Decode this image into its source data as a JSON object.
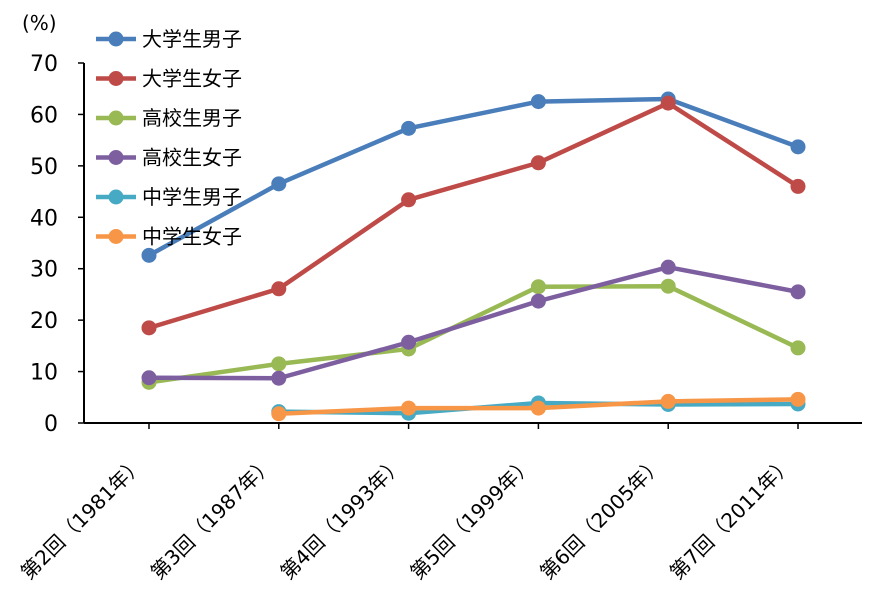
{
  "chart_data": {
    "type": "line",
    "unit_label": "(%)",
    "categories": [
      "第2回（1981年）",
      "第3回（1987年）",
      "第4回（1993年）",
      "第5回（1999年）",
      "第6回（2005年）",
      "第7回（2011年）"
    ],
    "ylim": [
      0,
      70
    ],
    "yticks": [
      0,
      10,
      20,
      30,
      40,
      50,
      60,
      70
    ],
    "grid": false,
    "legend_placement": "top-left",
    "series": [
      {
        "name": "大学生男子",
        "color": "#4a7ebb",
        "values": [
          32.6,
          46.5,
          57.3,
          62.5,
          63.0,
          53.7
        ]
      },
      {
        "name": "大学生女子",
        "color": "#be4b48",
        "values": [
          18.5,
          26.1,
          43.4,
          50.6,
          62.2,
          46.0
        ]
      },
      {
        "name": "高校生男子",
        "color": "#98b954",
        "values": [
          7.9,
          11.5,
          14.4,
          26.5,
          26.6,
          14.6
        ]
      },
      {
        "name": "高校生女子",
        "color": "#7d5fa0",
        "values": [
          8.8,
          8.7,
          15.7,
          23.7,
          30.3,
          25.5
        ]
      },
      {
        "name": "中学生男子",
        "color": "#46aac5",
        "values": [
          null,
          2.2,
          1.9,
          3.9,
          3.6,
          3.7
        ]
      },
      {
        "name": "中学生女子",
        "color": "#f79646",
        "values": [
          null,
          1.8,
          2.9,
          2.9,
          4.2,
          4.6
        ]
      }
    ]
  }
}
